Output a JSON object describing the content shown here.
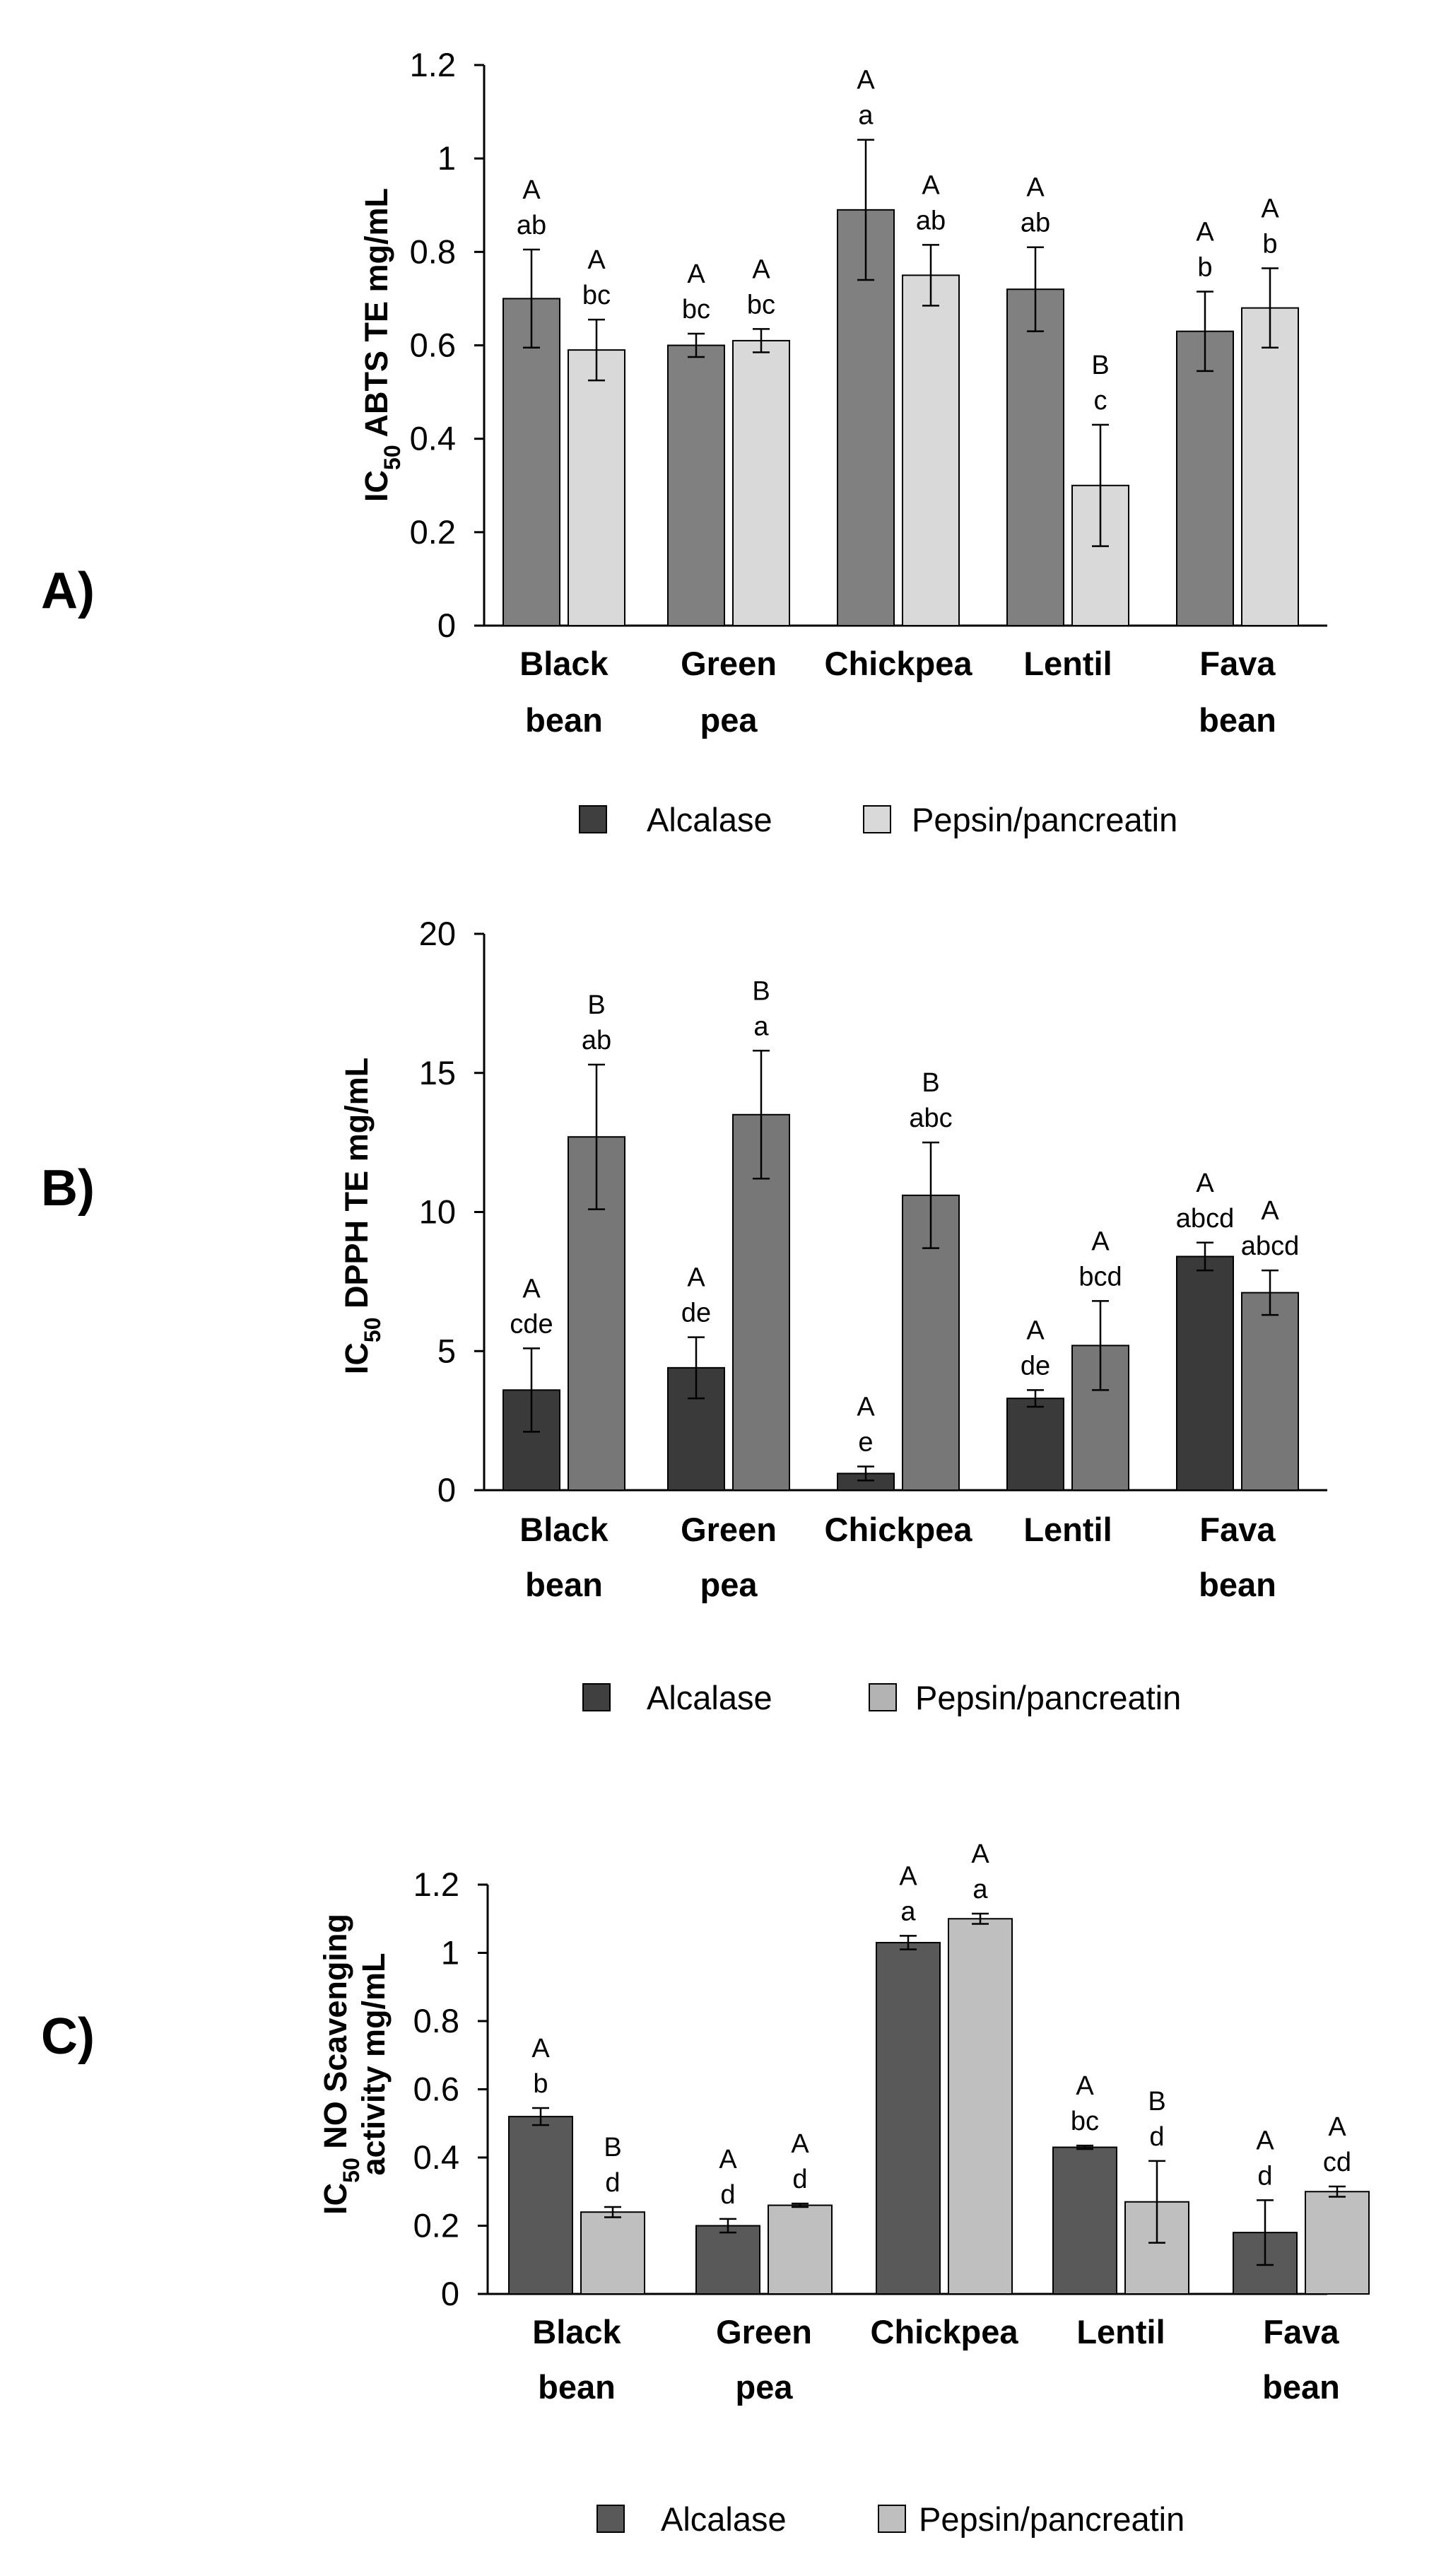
{
  "figure": {
    "charts_count": 3
  },
  "chart_data": [
    {
      "panel": "A)",
      "type": "bar",
      "ylabel_main": "IC",
      "ylabel_sub": "50",
      "ylabel_rest": " ABTS TE mg/mL",
      "ylabel_rest2": "",
      "ylim": [
        0,
        1.2
      ],
      "yticks": [
        "0",
        "0.2",
        "0.4",
        "0.6",
        "0.8",
        "1",
        "1.2"
      ],
      "categories": [
        [
          "Black",
          "bean"
        ],
        [
          "Green",
          "pea"
        ],
        [
          "Chickpea",
          ""
        ],
        [
          "Lentil",
          ""
        ],
        [
          "Fava",
          "bean"
        ]
      ],
      "series": [
        {
          "name": "Alcalase",
          "color": "#808080",
          "values": [
            0.7,
            0.6,
            0.89,
            0.72,
            0.63
          ],
          "errors": [
            0.105,
            0.025,
            0.15,
            0.09,
            0.085
          ],
          "upper": [
            "A",
            "A",
            "A",
            "A",
            "A"
          ],
          "lower": [
            "ab",
            "bc",
            "a",
            "ab",
            "b"
          ]
        },
        {
          "name": "Pepsin/pancreatin",
          "color": "#d9d9d9",
          "values": [
            0.59,
            0.61,
            0.75,
            0.3,
            0.68
          ],
          "errors": [
            0.065,
            0.025,
            0.065,
            0.13,
            0.085
          ],
          "upper": [
            "A",
            "A",
            "A",
            "B",
            "A"
          ],
          "lower": [
            "bc",
            "bc",
            "ab",
            "c",
            "b"
          ]
        }
      ],
      "legend": {
        "position": "bottom",
        "items": [
          "Alcalase",
          "Pepsin/pancreatin"
        ],
        "swatches": [
          "#3f3f3f",
          "#d9d9d9"
        ]
      }
    },
    {
      "panel": "B)",
      "type": "bar",
      "ylabel_main": "IC",
      "ylabel_sub": "50",
      "ylabel_rest": " DPPH TE mg/mL",
      "ylabel_rest2": "",
      "ylim": [
        0,
        20
      ],
      "yticks": [
        "0",
        "5",
        "10",
        "15",
        "20"
      ],
      "categories": [
        [
          "Black",
          "bean"
        ],
        [
          "Green",
          "pea"
        ],
        [
          "Chickpea",
          ""
        ],
        [
          "Lentil",
          ""
        ],
        [
          "Fava",
          "bean"
        ]
      ],
      "series": [
        {
          "name": "Alcalase",
          "color": "#3a3a3a",
          "values": [
            3.6,
            4.4,
            0.6,
            3.3,
            8.4
          ],
          "errors": [
            1.5,
            1.1,
            0.25,
            0.3,
            0.5
          ],
          "upper": [
            "A",
            "A",
            "A",
            "A",
            "A"
          ],
          "lower": [
            "cde",
            "de",
            "e",
            "de",
            "abcd"
          ]
        },
        {
          "name": "Pepsin/pancreatin",
          "color": "#777777",
          "values": [
            12.7,
            13.5,
            10.6,
            5.2,
            7.1
          ],
          "errors": [
            2.6,
            2.3,
            1.9,
            1.6,
            0.8
          ],
          "upper": [
            "B",
            "B",
            "B",
            "A",
            "A"
          ],
          "lower": [
            "ab",
            "a",
            "abc",
            "bcd",
            "abcd"
          ]
        }
      ],
      "legend": {
        "position": "bottom",
        "items": [
          "Alcalase",
          "Pepsin/pancreatin"
        ],
        "swatches": [
          "#404040",
          "#b3b3b3"
        ]
      }
    },
    {
      "panel": "C)",
      "type": "bar",
      "ylabel_main": "IC",
      "ylabel_sub": "50",
      "ylabel_rest": " NO Scavenging",
      "ylabel_rest2": "activity mg/mL",
      "ylim": [
        0,
        1.2
      ],
      "yticks": [
        "0",
        "0.2",
        "0.4",
        "0.6",
        "0.8",
        "1",
        "1.2"
      ],
      "categories": [
        [
          "Black",
          "bean"
        ],
        [
          "Green",
          "pea"
        ],
        [
          "Chickpea",
          ""
        ],
        [
          "Lentil",
          ""
        ],
        [
          "Fava",
          "bean"
        ]
      ],
      "series": [
        {
          "name": "Alcalase",
          "color": "#595959",
          "values": [
            0.52,
            0.2,
            1.03,
            0.43,
            0.18
          ],
          "errors": [
            0.025,
            0.02,
            0.02,
            0.005,
            0.095
          ],
          "upper": [
            "A",
            "A",
            "A",
            "A",
            "A"
          ],
          "lower": [
            "b",
            "d",
            "a",
            "bc",
            "d"
          ]
        },
        {
          "name": "Pepsin/pancreatin",
          "color": "#bfbfbf",
          "values": [
            0.24,
            0.26,
            1.1,
            0.27,
            0.3
          ],
          "errors": [
            0.015,
            0.005,
            0.015,
            0.12,
            0.015
          ],
          "upper": [
            "B",
            "A",
            "A",
            "B",
            "A"
          ],
          "lower": [
            "d",
            "d",
            "a",
            "d",
            "cd"
          ]
        }
      ],
      "legend": {
        "position": "bottom",
        "items": [
          "Alcalase",
          "Pepsin/pancreatin"
        ],
        "swatches": [
          "#595959",
          "#bfbfbf"
        ]
      }
    }
  ]
}
